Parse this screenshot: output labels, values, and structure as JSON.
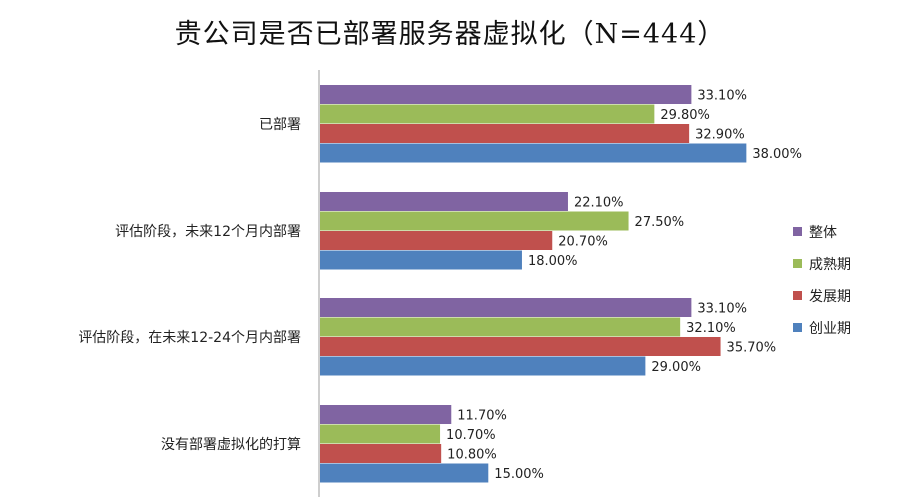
{
  "chart_data": {
    "type": "bar",
    "orientation": "horizontal",
    "title": "贵公司是否已部署服务器虚拟化（N=444）",
    "categories": [
      "已部署",
      "评估阶段，未来12个月内部署",
      "评估阶段，在未来12-24个月内部署",
      "没有部署虚拟化的打算"
    ],
    "value_unit": "%",
    "value_decimals": 2,
    "xlim": [
      0,
      40
    ],
    "grid": false,
    "legend_position": "right",
    "series": [
      {
        "name": "整体",
        "color": "#8064A2",
        "values": [
          33.1,
          22.1,
          33.1,
          11.7
        ]
      },
      {
        "name": "成熟期",
        "color": "#9BBB59",
        "values": [
          29.8,
          27.5,
          32.1,
          10.7
        ]
      },
      {
        "name": "发展期",
        "color": "#C0504D",
        "values": [
          32.9,
          20.7,
          35.7,
          10.8
        ]
      },
      {
        "name": "创业期",
        "color": "#4F81BD",
        "values": [
          38.0,
          18.0,
          29.0,
          15.0
        ]
      }
    ]
  }
}
